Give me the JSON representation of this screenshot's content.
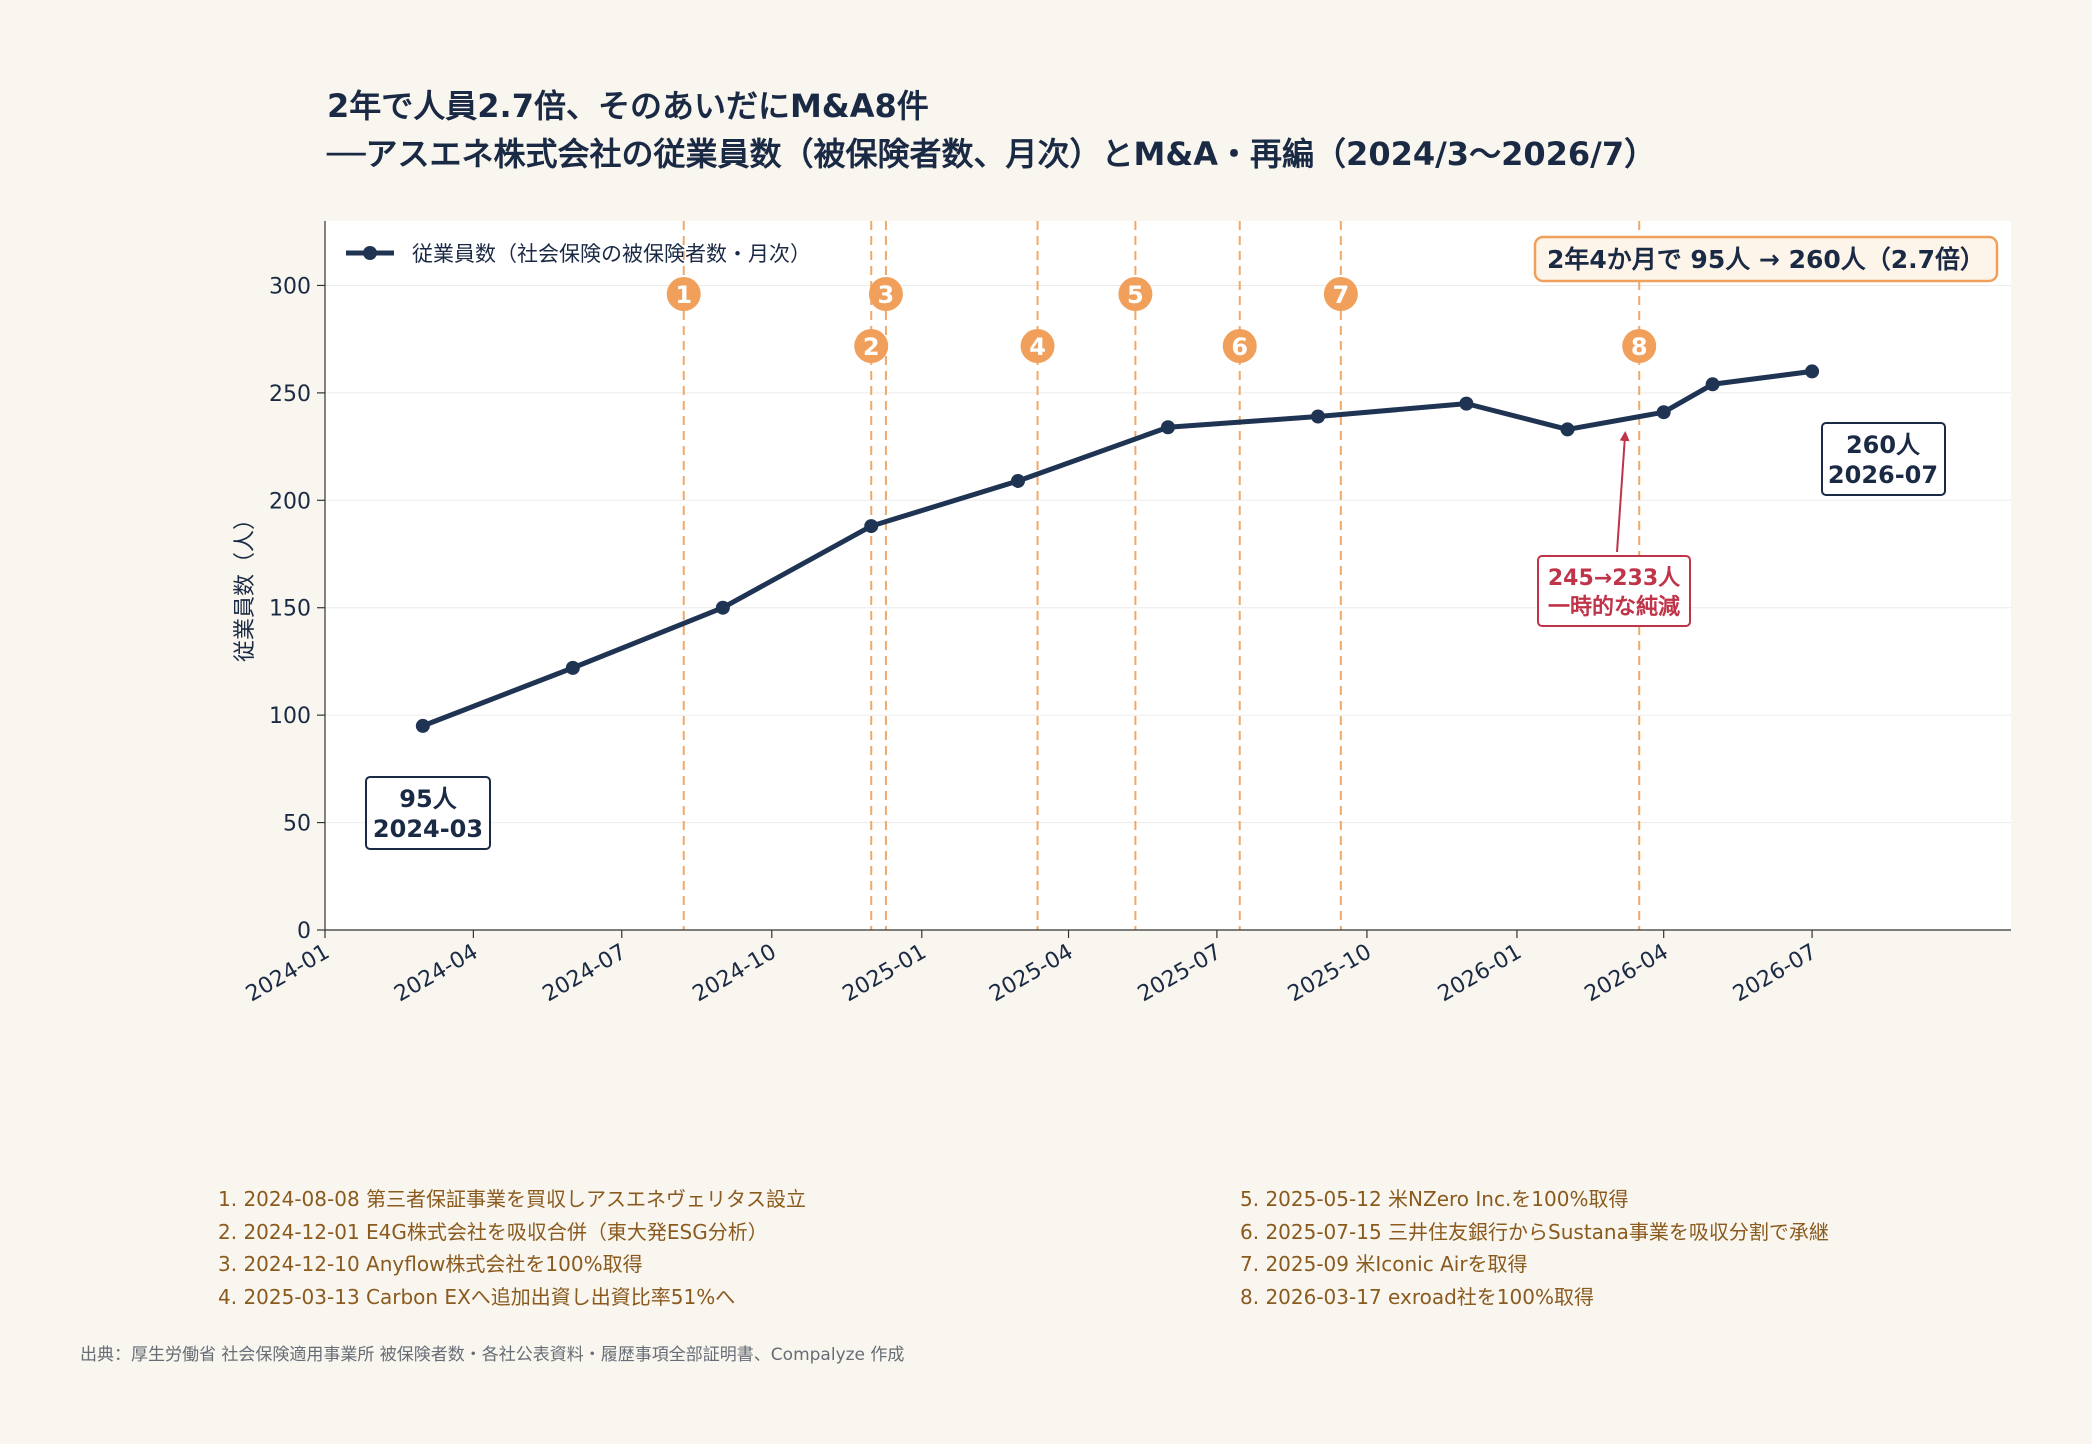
{
  "title": {
    "line1": "2年で人員2.7倍、そのあいだにM&A8件",
    "line2": "──アスエネ株式会社の従業員数（被保険者数、月次）とM&A・再編（2024/3〜2026/7）"
  },
  "chart_data": {
    "type": "line",
    "ylabel": "従業員数（人）",
    "xlabel": "",
    "ylim": [
      0,
      330
    ],
    "xlim": [
      "2024-01-01",
      "2026-10-31"
    ],
    "yticks": [
      0,
      50,
      100,
      150,
      200,
      250,
      300
    ],
    "xticks": [
      "2024-01",
      "2024-04",
      "2024-07",
      "2024-10",
      "2025-01",
      "2025-04",
      "2025-07",
      "2025-10",
      "2026-01",
      "2026-04",
      "2026-07"
    ],
    "grid": "horizontal",
    "legend_position": "top-left",
    "series": [
      {
        "name": "従業員数（社会保険の被保険者数・月次）",
        "color": "#1f3352",
        "points": [
          {
            "x": "2024-03-01",
            "y": 95
          },
          {
            "x": "2024-06-01",
            "y": 122
          },
          {
            "x": "2024-09-01",
            "y": 150
          },
          {
            "x": "2024-12-01",
            "y": 188
          },
          {
            "x": "2025-03-01",
            "y": 209
          },
          {
            "x": "2025-06-01",
            "y": 234
          },
          {
            "x": "2025-09-01",
            "y": 239
          },
          {
            "x": "2025-12-01",
            "y": 245
          },
          {
            "x": "2026-02-01",
            "y": 233
          },
          {
            "x": "2026-04-01",
            "y": 241
          },
          {
            "x": "2026-05-01",
            "y": 254
          },
          {
            "x": "2026-07-01",
            "y": 260
          }
        ]
      }
    ],
    "events": [
      {
        "num": "1",
        "date": "2024-08-08",
        "row": "upper"
      },
      {
        "num": "2",
        "date": "2024-12-01",
        "row": "lower"
      },
      {
        "num": "3",
        "date": "2024-12-10",
        "row": "upper"
      },
      {
        "num": "4",
        "date": "2025-03-13",
        "row": "lower"
      },
      {
        "num": "5",
        "date": "2025-05-12",
        "row": "upper"
      },
      {
        "num": "6",
        "date": "2025-07-15",
        "row": "lower"
      },
      {
        "num": "7",
        "date": "2025-09-15",
        "row": "upper"
      },
      {
        "num": "8",
        "date": "2026-03-17",
        "row": "lower"
      }
    ],
    "annotations": {
      "start": {
        "line1": "95人",
        "line2": "2024-03"
      },
      "end": {
        "line1": "260人",
        "line2": "2026-07"
      },
      "dip": {
        "line1": "245→233人",
        "line2": "一時的な純減"
      },
      "summary": "2年4か月で 95人 → 260人（2.7倍）"
    },
    "colors": {
      "line": "#1f3352",
      "event": "#f0a05a",
      "dip": "#c0344a",
      "summary_border": "#f0a05a"
    }
  },
  "notes": [
    "1. 2024-08-08  第三者保証事業を買収しアスエネヴェリタス設立",
    "2. 2024-12-01  E4G株式会社を吸収合併（東大発ESG分析）",
    "3. 2024-12-10  Anyflow株式会社を100%取得",
    "4. 2025-03-13  Carbon EXへ追加出資し出資比率51%へ",
    "5. 2025-05-12  米NZero Inc.を100%取得",
    "6. 2025-07-15  三井住友銀行からSustana事業を吸収分割で承継",
    "7. 2025-09  米Iconic Airを取得",
    "8. 2026-03-17  exroad社を100%取得"
  ],
  "source": "出典：厚生労働省 社会保険適用事業所 被保険者数・各社公表資料・履歴事項全部証明書、Compalyze 作成"
}
